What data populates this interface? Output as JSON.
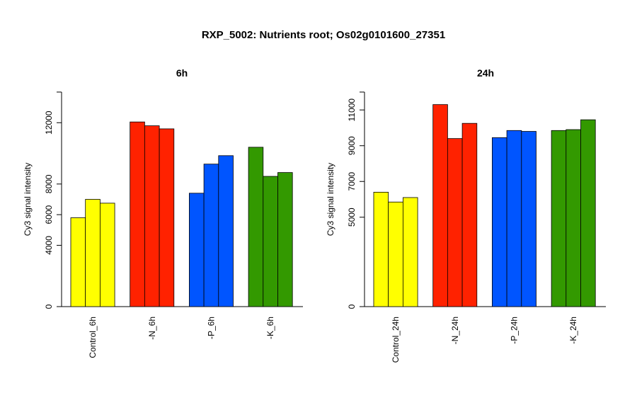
{
  "title": "RXP_5002: Nutrients root; Os02g0101600_27351",
  "chart_data": [
    {
      "type": "bar",
      "title": "6h",
      "ylabel": "Cy3 signal intensity",
      "ylim": [
        0,
        14000
      ],
      "yticks": [
        0,
        4000,
        6000,
        8000,
        12000
      ],
      "categories": [
        "Control_6h",
        "-N_6h",
        "-P_6h",
        "-K_6h"
      ],
      "group_colors": [
        "#FFFF00",
        "#FF2200",
        "#0055FF",
        "#339900"
      ],
      "values": [
        [
          5800,
          7000,
          6750
        ],
        [
          12050,
          11800,
          11600
        ],
        [
          7400,
          9300,
          9850
        ],
        [
          10400,
          8500,
          8750
        ]
      ]
    },
    {
      "type": "bar",
      "title": "24h",
      "ylabel": "Cy3 signal intensity",
      "ylim": [
        0,
        12000
      ],
      "yticks": [
        0,
        5000,
        7000,
        9000,
        11000
      ],
      "categories": [
        "Control_24h",
        "-N_24h",
        "-P_24h",
        "-K_24h"
      ],
      "group_colors": [
        "#FFFF00",
        "#FF2200",
        "#0055FF",
        "#339900"
      ],
      "values": [
        [
          6400,
          5850,
          6100
        ],
        [
          11300,
          9400,
          10250
        ],
        [
          9450,
          9850,
          9800
        ],
        [
          9850,
          9900,
          10450
        ]
      ]
    }
  ]
}
